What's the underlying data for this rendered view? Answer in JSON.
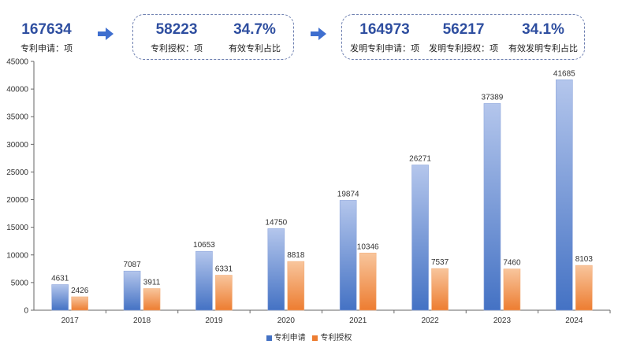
{
  "summary": {
    "applications": {
      "value": "167634",
      "label": "专利申请：项"
    },
    "granted": {
      "value": "58223",
      "label": "专利授权：项"
    },
    "valid_ratio": {
      "value": "34.7%",
      "label": "有效专利占比"
    },
    "invention_applications": {
      "value": "164973",
      "label": "发明专利申请：项"
    },
    "invention_granted": {
      "value": "56217",
      "label": "发明专利授权：项"
    },
    "invention_valid_ratio": {
      "value": "34.1%",
      "label": "有效发明专利占比"
    }
  },
  "colors": {
    "accent": "#2f4fa0",
    "arrow": "#3f6fcf",
    "series_application": "#4472c4",
    "series_grant": "#ed7d31"
  },
  "chart_data": {
    "type": "bar",
    "categories": [
      "2017",
      "2018",
      "2019",
      "2020",
      "2021",
      "2022",
      "2023",
      "2024"
    ],
    "series": [
      {
        "name": "专利申请",
        "values": [
          4631,
          7087,
          10653,
          14750,
          19874,
          26271,
          37389,
          41685
        ]
      },
      {
        "name": "专利授权",
        "values": [
          2426,
          3911,
          6331,
          8818,
          10346,
          7537,
          7460,
          8103
        ]
      }
    ],
    "ylim": [
      0,
      45000
    ],
    "yticks": [
      0,
      5000,
      10000,
      15000,
      20000,
      25000,
      30000,
      35000,
      40000,
      45000
    ],
    "grid": false,
    "legend": "bottom-center"
  }
}
